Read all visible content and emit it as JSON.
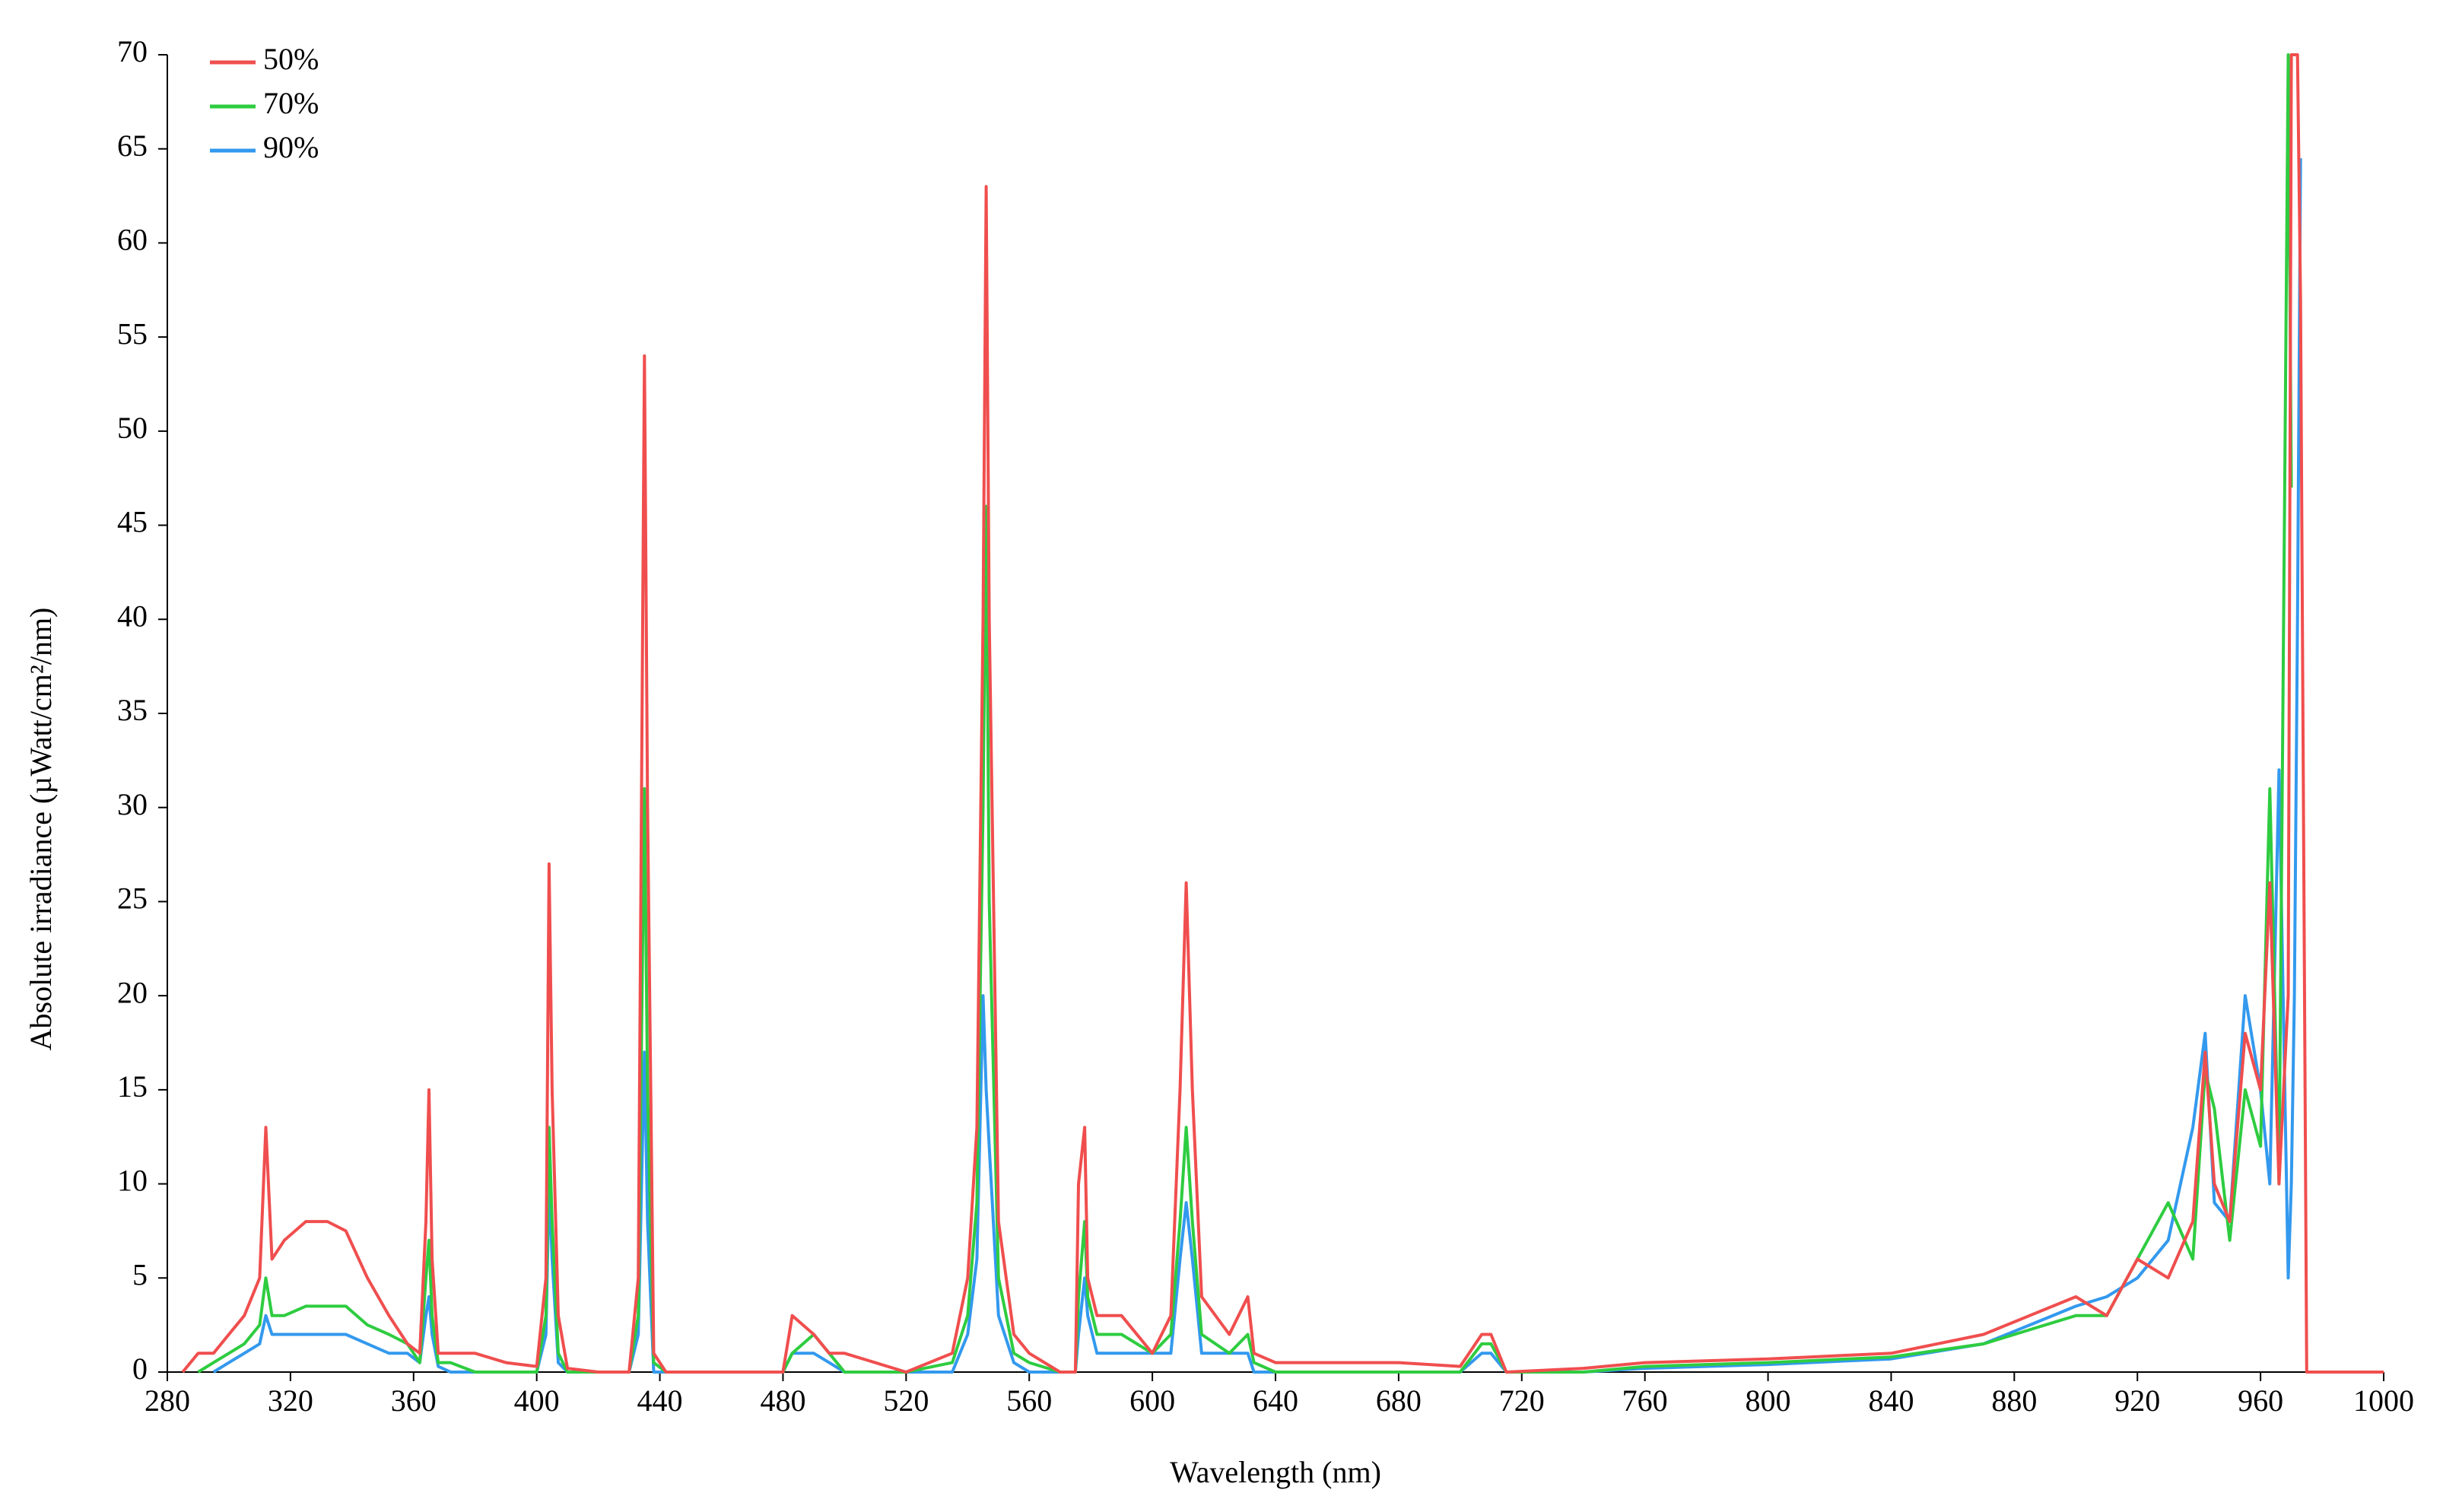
{
  "chart_data": {
    "type": "line",
    "x_label": "Wavelength (nm)",
    "y_label": "Absolute irradiance (µWatt/cm²/nm)",
    "x": [
      285,
      290,
      295,
      300,
      305,
      310,
      312,
      314,
      318,
      325,
      332,
      338,
      345,
      352,
      358,
      362,
      364,
      365,
      366,
      368,
      372,
      380,
      390,
      400,
      403,
      404,
      405,
      407,
      410,
      420,
      430,
      433,
      435,
      436,
      438,
      442,
      460,
      480,
      483,
      490,
      495,
      500,
      520,
      535,
      540,
      543,
      545,
      546,
      547,
      550,
      555,
      560,
      570,
      575,
      576,
      578,
      579,
      582,
      590,
      600,
      606,
      609,
      611,
      613,
      616,
      625,
      631,
      633,
      640,
      660,
      680,
      700,
      707,
      710,
      715,
      740,
      760,
      800,
      840,
      870,
      900,
      910,
      920,
      930,
      938,
      942,
      945,
      950,
      955,
      960,
      963,
      966,
      969,
      970,
      971,
      972,
      973,
      975,
      1000
    ],
    "series": [
      {
        "name": "50%",
        "color": "#f04e4e",
        "values": [
          0,
          1,
          1,
          2,
          3,
          5,
          13,
          6,
          7,
          8,
          8,
          7.5,
          5,
          3,
          1.5,
          1,
          8,
          15,
          6,
          1,
          1,
          1,
          0.5,
          0.3,
          5,
          27,
          15,
          3,
          0.2,
          0,
          0,
          5,
          54,
          30,
          1,
          0,
          0,
          0,
          3,
          2,
          1,
          1,
          0,
          1,
          5,
          13,
          40,
          63,
          40,
          8,
          2,
          1,
          0,
          0,
          10,
          13,
          5,
          3,
          3,
          1,
          3,
          15,
          26,
          15,
          4,
          2,
          4,
          1,
          0.5,
          0.5,
          0.5,
          0.3,
          2,
          2,
          0,
          0.2,
          0.5,
          0.7,
          1,
          2,
          4,
          3,
          6,
          5,
          8,
          17,
          10,
          8,
          18,
          15,
          26,
          10,
          20,
          70,
          70,
          70,
          57,
          0,
          0
        ]
      },
      {
        "name": "70%",
        "color": "#2ecc40",
        "values": [
          null,
          0,
          0.5,
          1,
          1.5,
          2.5,
          5,
          3,
          3,
          3.5,
          3.5,
          3.5,
          2.5,
          2,
          1.5,
          0.5,
          5,
          7,
          3,
          0.5,
          0.5,
          0,
          0,
          0,
          3,
          13,
          8,
          1,
          0,
          0,
          0,
          3,
          31,
          15,
          0.5,
          0,
          0,
          0,
          1,
          2,
          1,
          0,
          0,
          0.5,
          3,
          9,
          30,
          46,
          25,
          5,
          1,
          0.5,
          0,
          0,
          4,
          8,
          4,
          2,
          2,
          1,
          2,
          8,
          13,
          8,
          2,
          1,
          2,
          0.5,
          0,
          0,
          0,
          0,
          1.5,
          1.5,
          0,
          0,
          0.3,
          0.5,
          0.8,
          1.5,
          3,
          3,
          6,
          9,
          6,
          16,
          14,
          7,
          15,
          12,
          31,
          10,
          70,
          47,
          null,
          null,
          null,
          null,
          null
        ]
      },
      {
        "name": "90%",
        "color": "#3399ee",
        "values": [
          null,
          null,
          0,
          0.5,
          1,
          1.5,
          3,
          2,
          2,
          2,
          2,
          2,
          1.5,
          1,
          1,
          0.5,
          3,
          4,
          2,
          0.3,
          0,
          0,
          0,
          0,
          2,
          10,
          6,
          0.5,
          0,
          0,
          0,
          2,
          17,
          8,
          0,
          0,
          0,
          0,
          1,
          1,
          0.5,
          0,
          0,
          0,
          2,
          6,
          20,
          15,
          12,
          3,
          0.5,
          0,
          0,
          0,
          2,
          5,
          3,
          1,
          1,
          1,
          1,
          6,
          9,
          6,
          1,
          1,
          1,
          0,
          0,
          0,
          0,
          0,
          1,
          1,
          0,
          0,
          0.2,
          0.4,
          0.7,
          1.5,
          3.5,
          4,
          5,
          7,
          13,
          18,
          9,
          8,
          20,
          15,
          10,
          32,
          5,
          10,
          20,
          40,
          64.5,
          null,
          null
        ]
      }
    ],
    "xlim": [
      280,
      1000
    ],
    "ylim": [
      0,
      70
    ],
    "xticks": [
      280,
      320,
      360,
      400,
      440,
      480,
      520,
      560,
      600,
      640,
      680,
      720,
      760,
      800,
      840,
      880,
      920,
      960,
      1000
    ],
    "yticks": [
      0,
      5,
      10,
      15,
      20,
      25,
      30,
      35,
      40,
      45,
      50,
      55,
      60,
      65,
      70
    ],
    "grid": false,
    "legend": "upper left"
  }
}
